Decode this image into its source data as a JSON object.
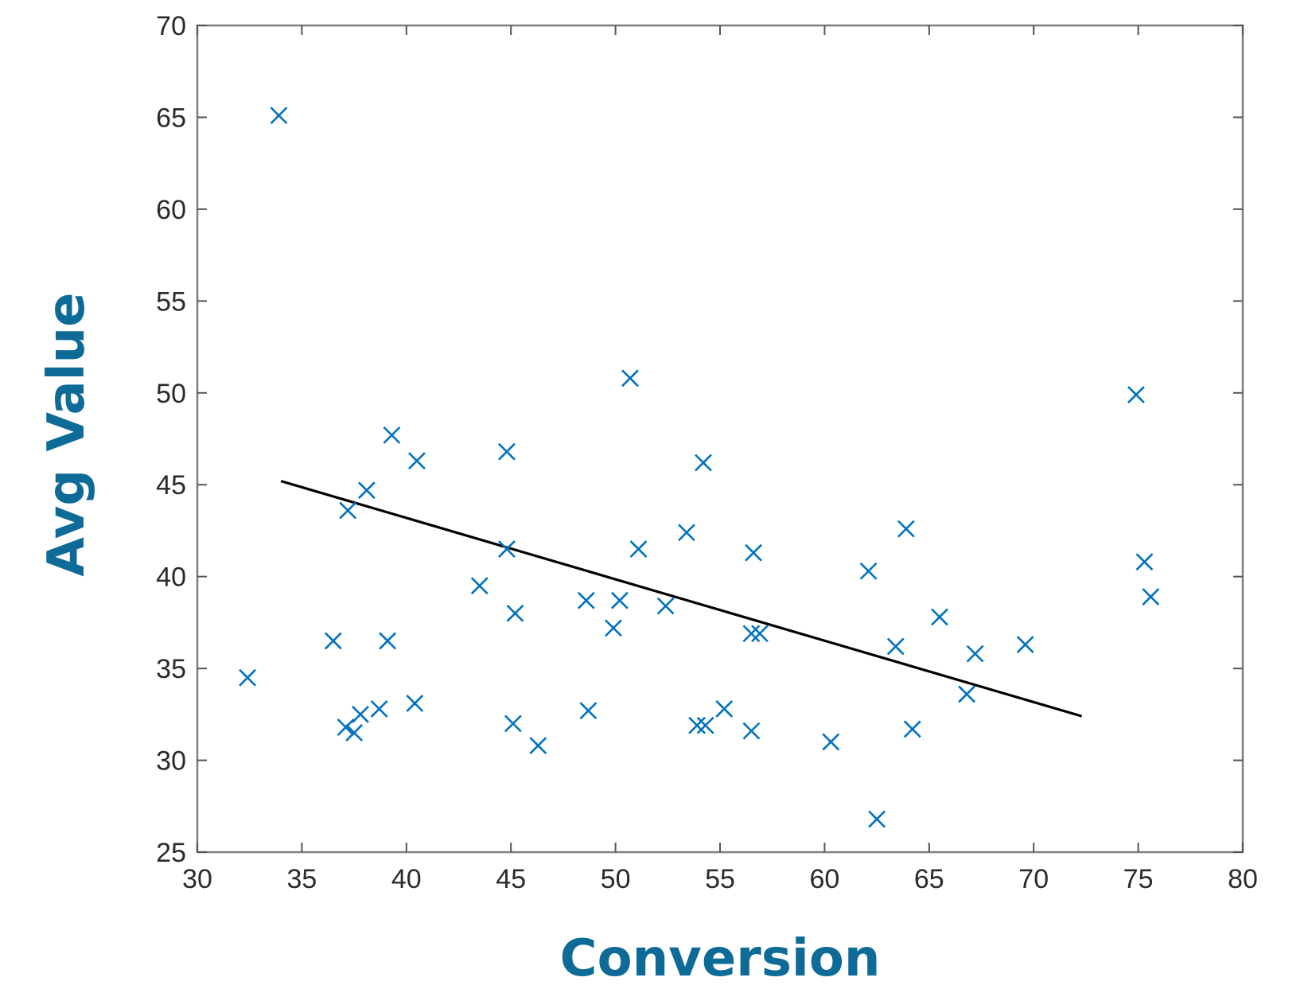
{
  "chart_data": {
    "type": "scatter",
    "xlabel": "Conversion",
    "ylabel": "Avg Value",
    "xlim": [
      30,
      80
    ],
    "ylim": [
      25,
      70
    ],
    "xticks": [
      "30",
      "35",
      "40",
      "45",
      "50",
      "55",
      "60",
      "65",
      "70",
      "75",
      "80"
    ],
    "yticks": [
      "25",
      "30",
      "35",
      "40",
      "45",
      "50",
      "55",
      "60",
      "65",
      "70"
    ],
    "grid": false,
    "marker": "x",
    "marker_color": "#0072bd",
    "axis_color": "#7f7f7f",
    "label_color": "#0e6a96",
    "fit_line_color": "#000000",
    "points": [
      [
        32.4,
        34.5
      ],
      [
        33.9,
        65.1
      ],
      [
        36.5,
        36.5
      ],
      [
        37.1,
        31.8
      ],
      [
        37.2,
        43.6
      ],
      [
        37.5,
        31.5
      ],
      [
        37.8,
        32.5
      ],
      [
        38.1,
        44.7
      ],
      [
        38.7,
        32.8
      ],
      [
        39.1,
        36.5
      ],
      [
        39.3,
        47.7
      ],
      [
        40.4,
        33.1
      ],
      [
        40.5,
        46.3
      ],
      [
        43.5,
        39.5
      ],
      [
        44.8,
        46.8
      ],
      [
        44.8,
        41.5
      ],
      [
        45.1,
        32.0
      ],
      [
        45.2,
        38.0
      ],
      [
        46.3,
        30.8
      ],
      [
        48.6,
        38.7
      ],
      [
        48.7,
        32.7
      ],
      [
        49.9,
        37.2
      ],
      [
        50.2,
        38.7
      ],
      [
        50.7,
        50.8
      ],
      [
        51.1,
        41.5
      ],
      [
        52.4,
        38.4
      ],
      [
        53.4,
        42.4
      ],
      [
        53.9,
        31.9
      ],
      [
        54.2,
        46.2
      ],
      [
        54.3,
        31.9
      ],
      [
        55.2,
        32.8
      ],
      [
        56.5,
        36.9
      ],
      [
        56.5,
        31.6
      ],
      [
        56.6,
        41.3
      ],
      [
        56.9,
        36.9
      ],
      [
        60.3,
        31.0
      ],
      [
        62.1,
        40.3
      ],
      [
        62.5,
        26.8
      ],
      [
        63.4,
        36.2
      ],
      [
        63.9,
        42.6
      ],
      [
        64.2,
        31.7
      ],
      [
        65.5,
        37.8
      ],
      [
        66.8,
        33.6
      ],
      [
        67.2,
        35.8
      ],
      [
        69.6,
        36.3
      ],
      [
        74.9,
        49.9
      ],
      [
        75.3,
        40.8
      ],
      [
        75.6,
        38.9
      ]
    ],
    "fit_line": {
      "x": [
        34.0,
        72.3
      ],
      "y": [
        45.2,
        32.4
      ]
    }
  }
}
